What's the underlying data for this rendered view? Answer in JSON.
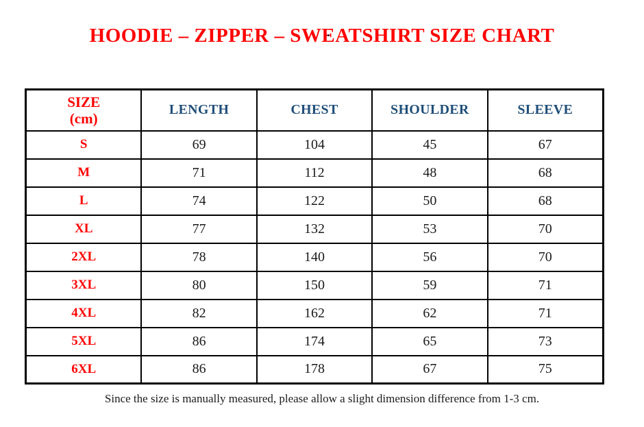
{
  "stray_mark": ".",
  "title": "HOODIE – ZIPPER – SWEATSHIRT SIZE CHART",
  "table": {
    "size_header_line1": "SIZE",
    "size_header_line2": "(cm)",
    "columns": [
      "LENGTH",
      "CHEST",
      "SHOULDER",
      "SLEEVE"
    ],
    "rows": [
      {
        "size": "S",
        "values": [
          69,
          104,
          45,
          67
        ]
      },
      {
        "size": "M",
        "values": [
          71,
          112,
          48,
          68
        ]
      },
      {
        "size": "L",
        "values": [
          74,
          122,
          50,
          68
        ]
      },
      {
        "size": "XL",
        "values": [
          77,
          132,
          53,
          70
        ]
      },
      {
        "size": "2XL",
        "values": [
          78,
          140,
          56,
          70
        ]
      },
      {
        "size": "3XL",
        "values": [
          80,
          150,
          59,
          71
        ]
      },
      {
        "size": "4XL",
        "values": [
          82,
          162,
          62,
          71
        ]
      },
      {
        "size": "5XL",
        "values": [
          86,
          174,
          65,
          73
        ]
      },
      {
        "size": "6XL",
        "values": [
          86,
          178,
          67,
          75
        ]
      }
    ]
  },
  "footnote": "Since the size is manually measured, please allow a slight dimension difference from 1-3 cm.",
  "colors": {
    "title_red": "#FF0000",
    "header_blue": "#1F4E79",
    "value_black": "#1A1A1A",
    "border_black": "#000000",
    "background": "#FFFFFF"
  },
  "chart_data": {
    "type": "table",
    "title": "HOODIE – ZIPPER – SWEATSHIRT SIZE CHART",
    "columns": [
      "SIZE (cm)",
      "LENGTH",
      "CHEST",
      "SHOULDER",
      "SLEEVE"
    ],
    "rows": [
      [
        "S",
        69,
        104,
        45,
        67
      ],
      [
        "M",
        71,
        112,
        48,
        68
      ],
      [
        "L",
        74,
        122,
        50,
        68
      ],
      [
        "XL",
        77,
        132,
        53,
        70
      ],
      [
        "2XL",
        78,
        140,
        56,
        70
      ],
      [
        "3XL",
        80,
        150,
        59,
        71
      ],
      [
        "4XL",
        82,
        162,
        62,
        71
      ],
      [
        "5XL",
        86,
        174,
        65,
        73
      ],
      [
        "6XL",
        86,
        178,
        67,
        75
      ]
    ],
    "note": "Since the size is manually measured, please allow a slight dimension difference from 1-3 cm."
  }
}
